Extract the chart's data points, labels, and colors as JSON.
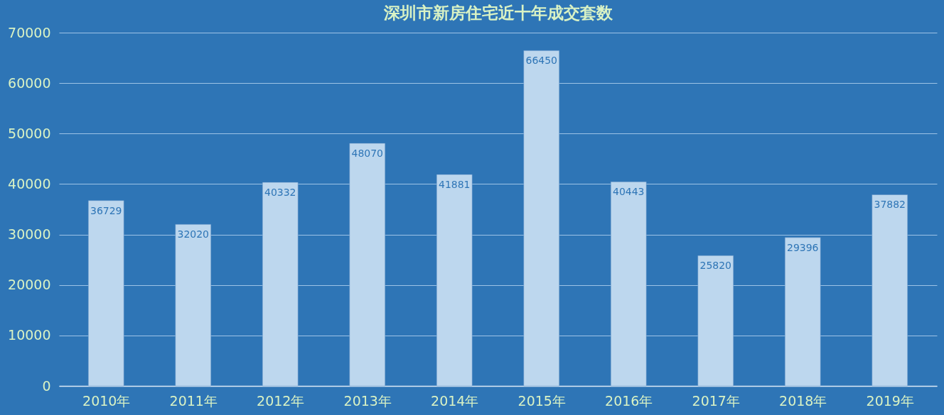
{
  "chart_data": {
    "type": "bar",
    "title": "深圳市新房住宅近十年成交套数",
    "categories": [
      "2010年",
      "2011年",
      "2012年",
      "2013年",
      "2014年",
      "2015年",
      "2016年",
      "2017年",
      "2018年",
      "2019年"
    ],
    "values": [
      36729,
      32020,
      40332,
      48070,
      41881,
      66450,
      40443,
      25820,
      29396,
      37882
    ],
    "color": "#bdd7ee",
    "ylim": [
      0,
      70000
    ],
    "yticks": [
      0,
      10000,
      20000,
      30000,
      40000,
      50000,
      60000,
      70000
    ],
    "grid": "y",
    "data_labels": true
  }
}
